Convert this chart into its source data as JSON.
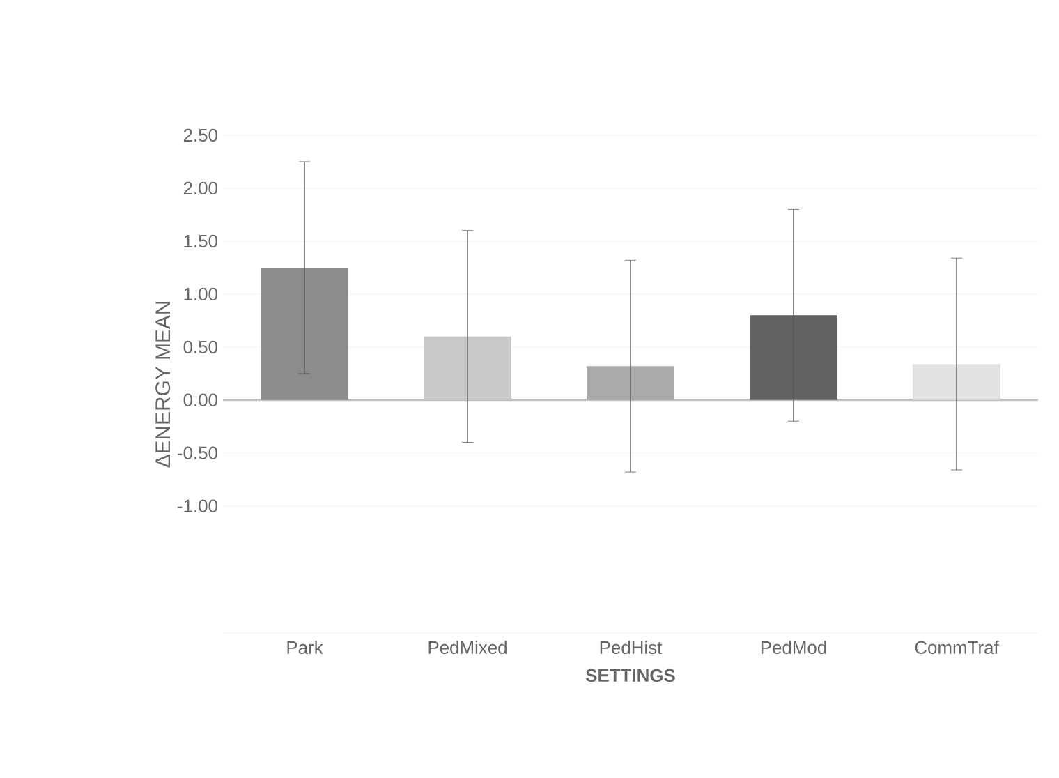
{
  "chart_data": {
    "type": "bar",
    "xlabel": "SETTINGS",
    "ylabel": "ΔENERGY MEAN",
    "categories": [
      "Park",
      "PedMixed",
      "PedHist",
      "PedMod",
      "CommTraf"
    ],
    "values": [
      1.25,
      0.6,
      0.32,
      0.8,
      0.34
    ],
    "errors": [
      1.0,
      1.0,
      1.0,
      1.0,
      1.0
    ],
    "colors": [
      "#8c8c8c",
      "#c8c8c8",
      "#a9a9a9",
      "#636363",
      "#e2e2e2"
    ],
    "ylim": [
      -2.2,
      2.5
    ],
    "yticks": [
      {
        "value": -1,
        "label": "-1.00"
      },
      {
        "value": -0.5,
        "label": "-0.50"
      },
      {
        "value": 0,
        "label": "0.00"
      },
      {
        "value": 0.5,
        "label": "0.50"
      },
      {
        "value": 1,
        "label": "1.00"
      },
      {
        "value": 1.5,
        "label": "1.50"
      },
      {
        "value": 2,
        "label": "2.00"
      },
      {
        "value": 2.5,
        "label": "2.50"
      }
    ],
    "grid": "y"
  }
}
